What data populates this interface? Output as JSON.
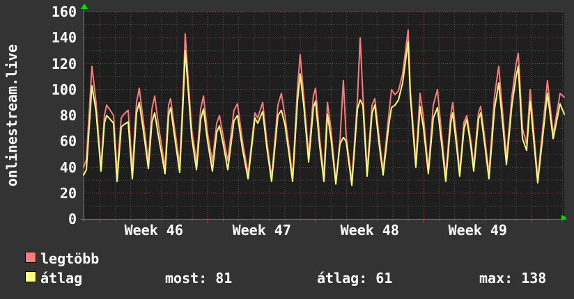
{
  "title": "onlinestream.live",
  "colors": {
    "background": "#333333",
    "canvas": "#1e1e1e",
    "major_grid": "#c04848",
    "minor_grid": "#515151",
    "axis": "#6a6a6a",
    "text": "#ffffff",
    "arrow": "#00e000",
    "legtobb": "#f57d7d",
    "atlag": "#fbfb7d"
  },
  "legend": {
    "items": [
      {
        "label": "legtöbb",
        "color": "#f57d7d"
      },
      {
        "label": "átlag",
        "color": "#fbfb7d"
      }
    ]
  },
  "stats": [
    {
      "label": "most:",
      "value": "81"
    },
    {
      "label": "átlag:",
      "value": "61"
    },
    {
      "label": "max:",
      "value": "138"
    }
  ],
  "chart_data": {
    "type": "line",
    "title": "onlinestream.live",
    "xlabel": "",
    "ylabel": "",
    "grid": true,
    "legend_position": "bottom-left",
    "y_axis": {
      "min": 0,
      "max": 160,
      "major_step": 20,
      "minor_step": 10
    },
    "x_axis": {
      "unit": "days",
      "span_days": 31.16,
      "day_gridline_offset": 0.05,
      "week_gridlines_days": [
        1.05,
        8.05,
        15.05,
        22.05,
        29.05
      ],
      "tick_labels": [
        {
          "day": 4.55,
          "label": "Week 46"
        },
        {
          "day": 11.55,
          "label": "Week 47"
        },
        {
          "day": 18.55,
          "label": "Week 48"
        },
        {
          "day": 25.55,
          "label": "Week 49"
        }
      ]
    },
    "stats": {
      "most": 81,
      "atlag": 61,
      "max": 138
    },
    "days": [
      0.0,
      0.18,
      0.54,
      0.81,
      1.13,
      1.35,
      1.49,
      1.72,
      1.94,
      2.17,
      2.44,
      2.62,
      2.89,
      3.16,
      3.43,
      3.61,
      3.88,
      4.2,
      4.43,
      4.61,
      4.88,
      5.28,
      5.51,
      5.64,
      5.87,
      6.23,
      6.46,
      6.59,
      6.77,
      7.0,
      7.32,
      7.59,
      7.77,
      8.04,
      8.35,
      8.63,
      8.81,
      9.08,
      9.35,
      9.75,
      9.98,
      10.3,
      10.66,
      11.11,
      11.29,
      11.61,
      11.88,
      12.19,
      12.6,
      12.82,
      13.05,
      13.32,
      13.55,
      13.86,
      14.04,
      14.27,
      14.59,
      14.9,
      15.04,
      15.31,
      15.58,
      15.81,
      16.03,
      16.35,
      16.62,
      16.84,
      17.02,
      17.39,
      17.75,
      17.93,
      18.11,
      18.38,
      18.7,
      18.88,
      19.19,
      19.42,
      19.78,
      19.96,
      20.19,
      20.41,
      20.68,
      21.04,
      21.18,
      21.54,
      21.81,
      22.04,
      22.35,
      22.67,
      22.94,
      23.21,
      23.48,
      23.8,
      23.93,
      24.2,
      24.38,
      24.66,
      24.84,
      25.11,
      25.29,
      25.6,
      25.74,
      26.01,
      26.28,
      26.64,
      26.91,
      27.18,
      27.41,
      27.77,
      28.04,
      28.18,
      28.45,
      28.72,
      28.95,
      29.44,
      30.07,
      30.44,
      30.89,
      31.16
    ],
    "series": [
      {
        "name": "legtöbb",
        "color": "#f57d7d",
        "values": [
          40,
          46,
          118,
          90,
          40,
          80,
          88,
          84,
          80,
          35,
          78,
          81,
          84,
          38,
          90,
          101,
          75,
          44,
          85,
          95,
          70,
          40,
          88,
          93,
          72,
          42,
          100,
          143,
          110,
          70,
          44,
          85,
          95,
          66,
          44,
          74,
          80,
          62,
          45,
          84,
          89,
          60,
          35,
          82,
          78,
          90,
          60,
          32,
          88,
          97,
          80,
          55,
          32,
          100,
          127,
          95,
          49,
          95,
          101,
          62,
          33,
          90,
          70,
          29,
          60,
          107,
          64,
          29,
          92,
          140,
          95,
          37,
          88,
          93,
          60,
          37,
          80,
          100,
          96,
          99,
          112,
          146,
          100,
          44,
          97,
          78,
          38,
          88,
          100,
          65,
          33,
          80,
          90,
          60,
          36,
          75,
          80,
          60,
          41,
          82,
          87,
          62,
          35,
          95,
          118,
          80,
          47,
          95,
          120,
          128,
          70,
          58,
          100,
          31,
          107,
          65,
          97,
          94
        ]
      },
      {
        "name": "átlag",
        "color": "#fbfb7d",
        "values": [
          34,
          38,
          103,
          83,
          37,
          74,
          80,
          77,
          74,
          29,
          71,
          73,
          75,
          31,
          82,
          90,
          68,
          39,
          75,
          82,
          62,
          35,
          80,
          86,
          66,
          36,
          92,
          130,
          102,
          64,
          38,
          77,
          85,
          60,
          37,
          67,
          72,
          56,
          38,
          76,
          80,
          54,
          31,
          78,
          74,
          83,
          55,
          29,
          80,
          84,
          73,
          50,
          29,
          90,
          112,
          88,
          44,
          86,
          91,
          56,
          29,
          81,
          63,
          27,
          58,
          63,
          60,
          26,
          85,
          92,
          88,
          33,
          82,
          88,
          55,
          34,
          72,
          86,
          88,
          92,
          105,
          137,
          95,
          40,
          87,
          70,
          35,
          78,
          86,
          58,
          29,
          74,
          82,
          54,
          33,
          70,
          77,
          56,
          37,
          77,
          82,
          57,
          31,
          85,
          105,
          72,
          42,
          88,
          110,
          118,
          62,
          53,
          91,
          28,
          97,
          62,
          89,
          81
        ]
      }
    ]
  }
}
